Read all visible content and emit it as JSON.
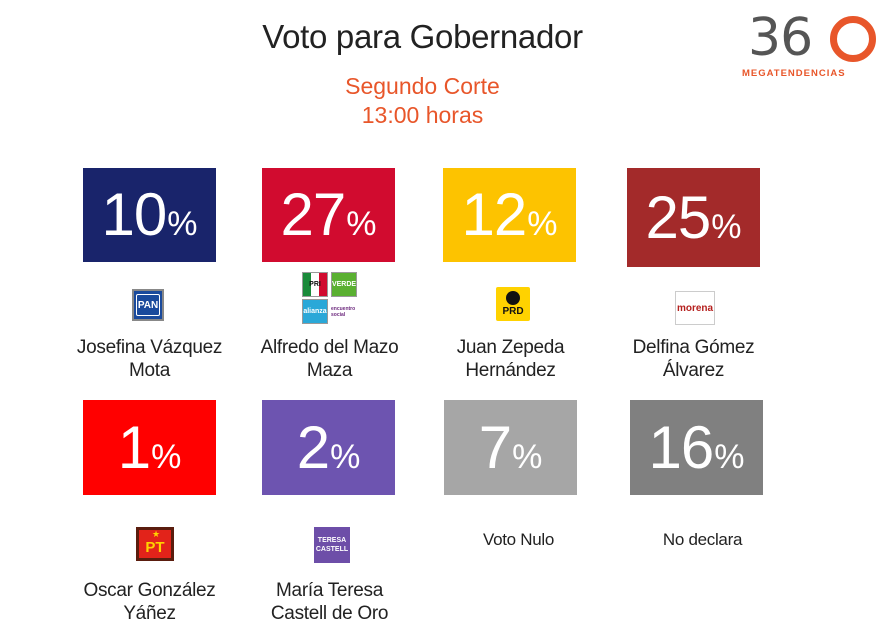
{
  "header": {
    "title": "Voto para Gobernador",
    "subtitle_line1": "Segundo Corte",
    "subtitle_line2": "13:00 horas"
  },
  "logo": {
    "number": "360",
    "tagline": "MEGATENDENCIAS"
  },
  "parties": {
    "pan": "PAN",
    "pri": "PRI",
    "verde": "VERDE",
    "alianza": "alianza",
    "encuentro": "encuentro social",
    "prd": "PRD",
    "morena": "morena",
    "pt": "PT",
    "castell_1": "TERESA",
    "castell_2": "CASTELL"
  },
  "colors": {
    "pan": "#19246b",
    "pri_coalition": "#d10b2f",
    "prd": "#fdc300",
    "morena": "#a32a2a",
    "pt": "#ff0000",
    "castell": "#6d54b0",
    "voto_nulo": "#a6a6a6",
    "no_declara": "#808080",
    "accent": "#e8562a"
  },
  "pct_symbol": "%",
  "chart_data": {
    "type": "table",
    "title": "Voto para Gobernador",
    "subtitle": "Segundo Corte 13:00 horas",
    "unit": "%",
    "items": [
      {
        "label_line1": "Josefina Vázquez",
        "label_line2": "Mota",
        "value": 10,
        "party": "PAN"
      },
      {
        "label_line1": "Alfredo del Mazo",
        "label_line2": "Maza",
        "value": 27,
        "party": "PRI"
      },
      {
        "label_line1": "Juan Zepeda",
        "label_line2": "Hernández",
        "value": 12,
        "party": "PRD"
      },
      {
        "label_line1": "Delfina Gómez",
        "label_line2": "Álvarez",
        "value": 25,
        "party": "morena"
      },
      {
        "label_line1": "Oscar González",
        "label_line2": "Yáñez",
        "value": 1,
        "party": "PT"
      },
      {
        "label_line1": "María Teresa",
        "label_line2": "Castell de Oro",
        "value": 2,
        "party": "TERESA CASTELL"
      },
      {
        "label_line1": "Voto Nulo",
        "label_line2": "",
        "value": 7,
        "party": ""
      },
      {
        "label_line1": "No declara",
        "label_line2": "",
        "value": 16,
        "party": ""
      }
    ]
  }
}
